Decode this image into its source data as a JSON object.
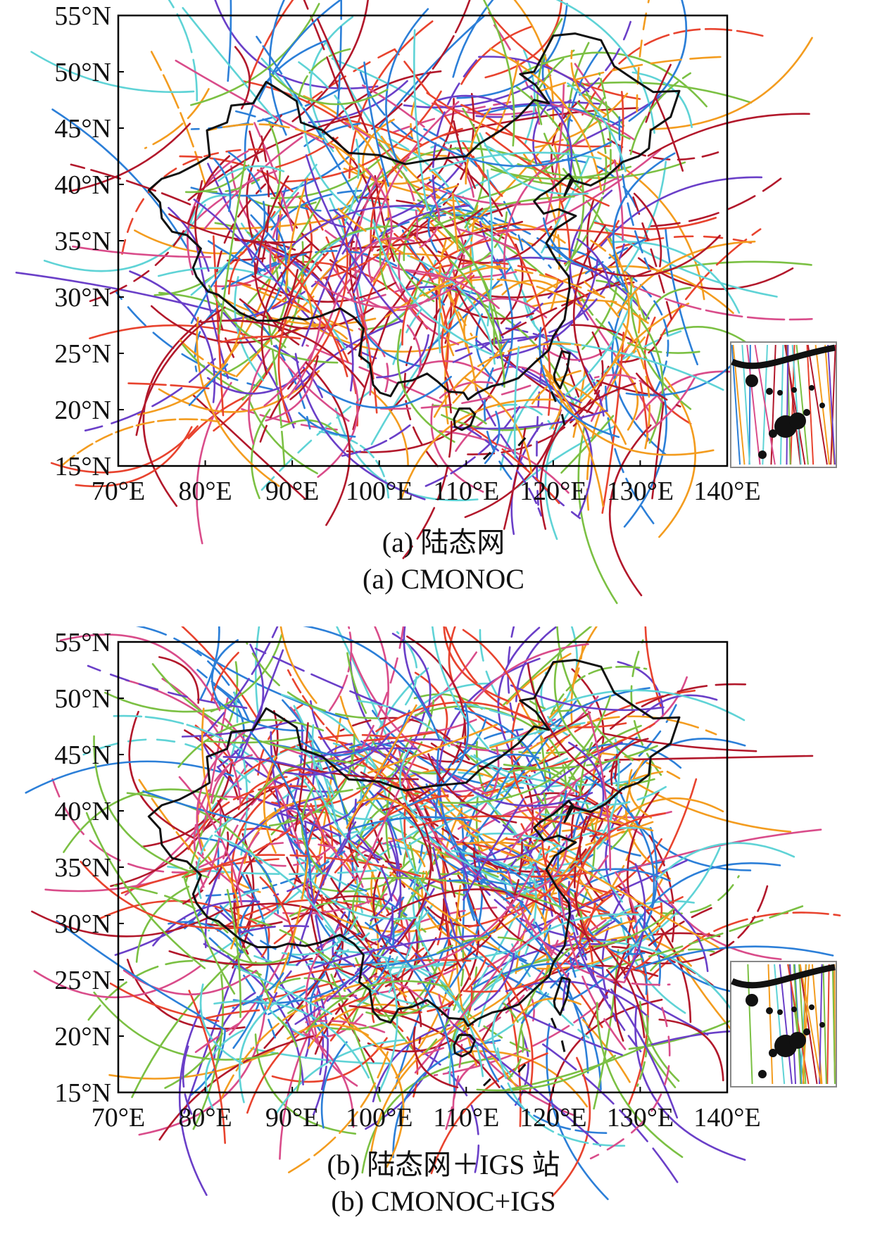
{
  "panels": [
    {
      "id": "a",
      "caption_cn": "(a) 陆态网",
      "caption_en": "(a) CMONOC",
      "x_ticks": [
        "70°E",
        "80°E",
        "90°E",
        "100°E",
        "110°E",
        "120°E",
        "130°E",
        "140°E"
      ],
      "y_ticks": [
        "55°N",
        "50°N",
        "45°N",
        "40°N",
        "35°N",
        "30°N",
        "25°N",
        "20°N",
        "15°N"
      ]
    },
    {
      "id": "b",
      "caption_cn": "(b) 陆态网＋IGS 站",
      "caption_en": "(b) CMONOC+IGS",
      "x_ticks": [
        "70°E",
        "80°E",
        "90°E",
        "100°E",
        "110°E",
        "120°E",
        "130°E",
        "140°E"
      ],
      "y_ticks": [
        "55°N",
        "50°N",
        "45°N",
        "40°N",
        "35°N",
        "30°N",
        "25°N",
        "20°N",
        "15°N"
      ]
    }
  ],
  "map_extent": {
    "lon": [
      70,
      140
    ],
    "lat": [
      15,
      55
    ]
  },
  "track_colors": [
    "#e8432e",
    "#b2182b",
    "#f39c1f",
    "#7bc043",
    "#2c7fd8",
    "#6a3fc8",
    "#5fd3d6",
    "#d94c8a"
  ],
  "border_color": "#111111"
}
